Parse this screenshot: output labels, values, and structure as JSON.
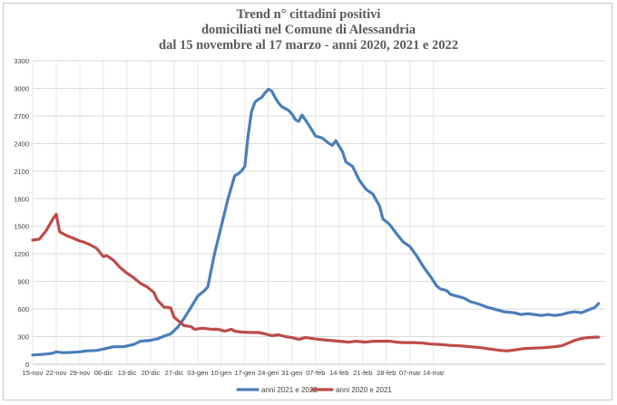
{
  "chart_data": {
    "type": "line",
    "title": [
      "Trend n° cittadini positivi",
      "domiciliati nel Comune di Alessandria",
      "dal 15 novembre al 17 marzo - anni 2020, 2021 e 2022"
    ],
    "xlabel": "",
    "ylabel": "",
    "ylim": [
      0,
      3300
    ],
    "yticks": [
      0,
      300,
      600,
      900,
      1200,
      1500,
      1800,
      2100,
      2400,
      2700,
      3000,
      3300
    ],
    "xlim": [
      "15-nov",
      "17-mar"
    ],
    "xticks": [
      "15-nov",
      "22-nov",
      "29-nov",
      "06-dic",
      "13-dic",
      "20-dic",
      "27-dic",
      "03-gen",
      "10-gen",
      "17-gen",
      "24-gen",
      "31-gen",
      "07-feb",
      "14-feb",
      "21-feb",
      "28-feb",
      "07-mar",
      "14-mar"
    ],
    "grid": true,
    "legend_position": "bottom",
    "series": [
      {
        "name": "anni 2021 e 2022",
        "color": "#4a7ebb",
        "points": [
          [
            0,
            100
          ],
          [
            4,
            110
          ],
          [
            6,
            120
          ],
          [
            7,
            135
          ],
          [
            9,
            125
          ],
          [
            12,
            130
          ],
          [
            14,
            135
          ],
          [
            16,
            145
          ],
          [
            19,
            150
          ],
          [
            21,
            165
          ],
          [
            24,
            190
          ],
          [
            27,
            190
          ],
          [
            30,
            215
          ],
          [
            32,
            250
          ],
          [
            35,
            260
          ],
          [
            37,
            275
          ],
          [
            39,
            305
          ],
          [
            41,
            330
          ],
          [
            43,
            400
          ],
          [
            45,
            500
          ],
          [
            47,
            620
          ],
          [
            49,
            740
          ],
          [
            51,
            800
          ],
          [
            52,
            840
          ],
          [
            54,
            1200
          ],
          [
            56,
            1500
          ],
          [
            58,
            1800
          ],
          [
            60,
            2050
          ],
          [
            61,
            2070
          ],
          [
            62,
            2100
          ],
          [
            63,
            2150
          ],
          [
            64,
            2500
          ],
          [
            65,
            2750
          ],
          [
            66,
            2850
          ],
          [
            67,
            2880
          ],
          [
            68,
            2900
          ],
          [
            69,
            2950
          ],
          [
            70,
            2990
          ],
          [
            71,
            2970
          ],
          [
            72,
            2900
          ],
          [
            73,
            2840
          ],
          [
            74,
            2800
          ],
          [
            76,
            2760
          ],
          [
            77,
            2720
          ],
          [
            78,
            2660
          ],
          [
            79,
            2640
          ],
          [
            80,
            2710
          ],
          [
            82,
            2600
          ],
          [
            84,
            2480
          ],
          [
            86,
            2460
          ],
          [
            88,
            2400
          ],
          [
            89,
            2380
          ],
          [
            90,
            2430
          ],
          [
            92,
            2310
          ],
          [
            93,
            2200
          ],
          [
            95,
            2150
          ],
          [
            97,
            2000
          ],
          [
            99,
            1900
          ],
          [
            101,
            1850
          ],
          [
            103,
            1720
          ],
          [
            104,
            1580
          ],
          [
            106,
            1520
          ],
          [
            108,
            1420
          ],
          [
            110,
            1330
          ],
          [
            112,
            1280
          ],
          [
            114,
            1180
          ],
          [
            116,
            1060
          ],
          [
            118,
            960
          ],
          [
            120,
            850
          ],
          [
            121,
            820
          ],
          [
            123,
            800
          ],
          [
            124,
            760
          ],
          [
            126,
            740
          ],
          [
            128,
            720
          ],
          [
            130,
            680
          ],
          [
            132,
            660
          ],
          [
            135,
            620
          ],
          [
            137,
            600
          ],
          [
            140,
            570
          ],
          [
            143,
            560
          ],
          [
            145,
            540
          ],
          [
            147,
            550
          ],
          [
            149,
            540
          ],
          [
            151,
            530
          ],
          [
            153,
            540
          ],
          [
            155,
            530
          ],
          [
            157,
            540
          ],
          [
            159,
            560
          ],
          [
            161,
            570
          ],
          [
            163,
            560
          ],
          [
            165,
            590
          ],
          [
            167,
            620
          ],
          [
            168,
            660
          ]
        ]
      },
      {
        "name": "anni 2020 e 2021",
        "color": "#be4b48",
        "points": [
          [
            0,
            1350
          ],
          [
            2,
            1360
          ],
          [
            4,
            1450
          ],
          [
            6,
            1580
          ],
          [
            7,
            1630
          ],
          [
            8,
            1440
          ],
          [
            10,
            1400
          ],
          [
            12,
            1370
          ],
          [
            14,
            1340
          ],
          [
            15,
            1330
          ],
          [
            17,
            1300
          ],
          [
            19,
            1260
          ],
          [
            21,
            1170
          ],
          [
            22,
            1180
          ],
          [
            24,
            1130
          ],
          [
            26,
            1050
          ],
          [
            28,
            990
          ],
          [
            30,
            940
          ],
          [
            32,
            880
          ],
          [
            34,
            840
          ],
          [
            36,
            780
          ],
          [
            37,
            700
          ],
          [
            39,
            620
          ],
          [
            40,
            620
          ],
          [
            41,
            610
          ],
          [
            42,
            510
          ],
          [
            44,
            450
          ],
          [
            45,
            420
          ],
          [
            47,
            410
          ],
          [
            48,
            380
          ],
          [
            50,
            390
          ],
          [
            51,
            390
          ],
          [
            53,
            380
          ],
          [
            55,
            380
          ],
          [
            57,
            360
          ],
          [
            59,
            380
          ],
          [
            60,
            360
          ],
          [
            62,
            350
          ],
          [
            65,
            345
          ],
          [
            67,
            345
          ],
          [
            69,
            330
          ],
          [
            71,
            310
          ],
          [
            73,
            320
          ],
          [
            75,
            300
          ],
          [
            77,
            290
          ],
          [
            79,
            270
          ],
          [
            81,
            290
          ],
          [
            83,
            280
          ],
          [
            85,
            270
          ],
          [
            88,
            260
          ],
          [
            91,
            250
          ],
          [
            94,
            240
          ],
          [
            96,
            250
          ],
          [
            99,
            240
          ],
          [
            101,
            250
          ],
          [
            103,
            250
          ],
          [
            106,
            250
          ],
          [
            108,
            240
          ],
          [
            110,
            235
          ],
          [
            113,
            235
          ],
          [
            116,
            230
          ],
          [
            118,
            220
          ],
          [
            121,
            215
          ],
          [
            124,
            205
          ],
          [
            127,
            200
          ],
          [
            130,
            190
          ],
          [
            133,
            180
          ],
          [
            136,
            165
          ],
          [
            139,
            150
          ],
          [
            141,
            145
          ],
          [
            143,
            155
          ],
          [
            146,
            170
          ],
          [
            149,
            175
          ],
          [
            152,
            180
          ],
          [
            155,
            190
          ],
          [
            157,
            200
          ],
          [
            159,
            230
          ],
          [
            161,
            260
          ],
          [
            163,
            280
          ],
          [
            165,
            290
          ],
          [
            167,
            295
          ],
          [
            168,
            295
          ]
        ]
      }
    ]
  }
}
